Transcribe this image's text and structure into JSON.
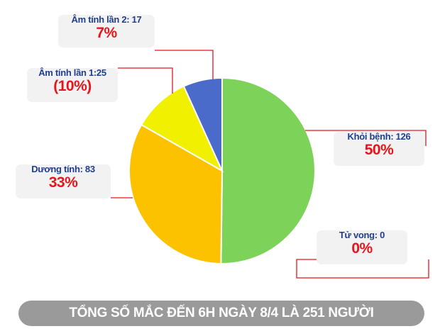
{
  "chart_data": {
    "type": "pie",
    "slices": [
      {
        "key": "khoi",
        "label": "Khỏi bệnh: 126",
        "percent_label": "50%",
        "value": 126,
        "color": "#7dd35a"
      },
      {
        "key": "tuvong",
        "label": "Tử vong: 0",
        "percent_label": "0%",
        "value": 0,
        "color": "#e8141b"
      },
      {
        "key": "duong",
        "label": "Dương tính: 83",
        "percent_label": "33%",
        "value": 83,
        "color": "#fcc200"
      },
      {
        "key": "am1",
        "label": "Âm tính lần 1:25",
        "percent_label": "(10%)",
        "value": 25,
        "color": "#f1f000"
      },
      {
        "key": "am2",
        "label": "Âm tính lần 2: 17",
        "percent_label": "7%",
        "value": 17,
        "color": "#4a6bc9"
      }
    ],
    "start_angle": "12 o'clock",
    "direction": "clockwise"
  },
  "footer": {
    "text": "TỔNG SỐ MẮC ĐẾN 6H NGÀY 8/4 LÀ 251 NGƯỜI"
  },
  "colors": {
    "leader_line": "#e8141b",
    "callout_bg": "#f2f2f2",
    "label_text": "#1f3f8f",
    "percent_text": "#e8141b",
    "footer_bg": "#9a9a9a"
  }
}
